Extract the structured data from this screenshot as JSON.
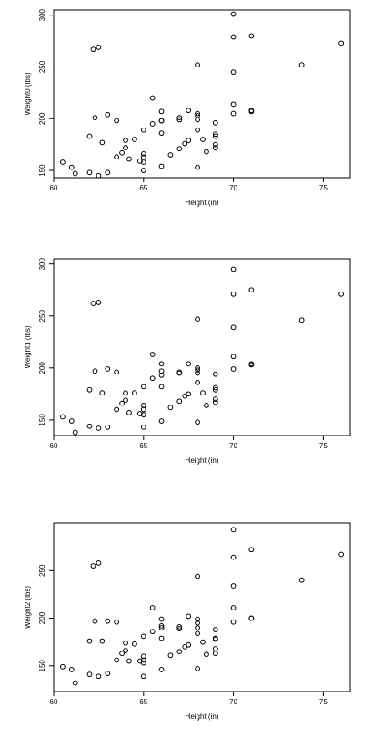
{
  "chart_data": [
    {
      "type": "scatter",
      "xlabel": "Height (in)",
      "ylabel": "Weight0 (lbs)",
      "xlim": [
        60,
        76.5
      ],
      "ylim": [
        143,
        305
      ],
      "xticks": [
        60,
        65,
        70,
        75
      ],
      "yticks": [
        150,
        200,
        250,
        300
      ],
      "points": [
        [
          60.5,
          158
        ],
        [
          61,
          153
        ],
        [
          61.2,
          147
        ],
        [
          62,
          148
        ],
        [
          62,
          183
        ],
        [
          62.3,
          201
        ],
        [
          62.2,
          267
        ],
        [
          62.5,
          269
        ],
        [
          62.5,
          145
        ],
        [
          62.7,
          177
        ],
        [
          63,
          148
        ],
        [
          63,
          204
        ],
        [
          63.5,
          198
        ],
        [
          63.5,
          163
        ],
        [
          63.8,
          167
        ],
        [
          64,
          172
        ],
        [
          64,
          179
        ],
        [
          64.2,
          161
        ],
        [
          64.5,
          180
        ],
        [
          64.8,
          159
        ],
        [
          65,
          150
        ],
        [
          65,
          158
        ],
        [
          65,
          163
        ],
        [
          65,
          166
        ],
        [
          65,
          189
        ],
        [
          65.5,
          220
        ],
        [
          65.5,
          195
        ],
        [
          66,
          154
        ],
        [
          66,
          186
        ],
        [
          66,
          198
        ],
        [
          66,
          198
        ],
        [
          66,
          207
        ],
        [
          66.5,
          165
        ],
        [
          67,
          171
        ],
        [
          67,
          199
        ],
        [
          67,
          201
        ],
        [
          67.3,
          176
        ],
        [
          67.5,
          179
        ],
        [
          67.5,
          208
        ],
        [
          68,
          153
        ],
        [
          68,
          189
        ],
        [
          68,
          199
        ],
        [
          68,
          203
        ],
        [
          68,
          205
        ],
        [
          68,
          252
        ],
        [
          68.3,
          180
        ],
        [
          68.5,
          168
        ],
        [
          69,
          172
        ],
        [
          69,
          175
        ],
        [
          69,
          183
        ],
        [
          69,
          185
        ],
        [
          69,
          196
        ],
        [
          70,
          205
        ],
        [
          70,
          214
        ],
        [
          70,
          245
        ],
        [
          70,
          279
        ],
        [
          70,
          301
        ],
        [
          71,
          207
        ],
        [
          71,
          208
        ],
        [
          71,
          280
        ],
        [
          73.8,
          252
        ],
        [
          76,
          273
        ]
      ]
    },
    {
      "type": "scatter",
      "xlabel": "Height (in)",
      "ylabel": "Weight1 (lbs)",
      "xlim": [
        60,
        76.5
      ],
      "ylim": [
        135,
        305
      ],
      "xticks": [
        60,
        65,
        70,
        75
      ],
      "yticks": [
        150,
        200,
        250,
        300
      ],
      "points": [
        [
          60.5,
          153
        ],
        [
          61,
          149
        ],
        [
          61.2,
          138
        ],
        [
          62,
          144
        ],
        [
          62,
          179
        ],
        [
          62.3,
          197
        ],
        [
          62.2,
          262
        ],
        [
          62.5,
          263
        ],
        [
          62.5,
          142
        ],
        [
          62.7,
          176
        ],
        [
          63,
          143
        ],
        [
          63,
          199
        ],
        [
          63.5,
          196
        ],
        [
          63.5,
          160
        ],
        [
          63.8,
          166
        ],
        [
          64,
          169
        ],
        [
          64,
          176
        ],
        [
          64.2,
          157
        ],
        [
          64.5,
          176
        ],
        [
          64.8,
          156
        ],
        [
          65,
          143
        ],
        [
          65,
          155
        ],
        [
          65,
          160
        ],
        [
          65,
          164
        ],
        [
          65,
          182
        ],
        [
          65.5,
          213
        ],
        [
          65.5,
          190
        ],
        [
          66,
          149
        ],
        [
          66,
          182
        ],
        [
          66,
          193
        ],
        [
          66,
          197
        ],
        [
          66,
          204
        ],
        [
          66.5,
          162
        ],
        [
          67,
          168
        ],
        [
          67,
          195
        ],
        [
          67,
          196
        ],
        [
          67.3,
          173
        ],
        [
          67.5,
          175
        ],
        [
          67.5,
          204
        ],
        [
          68,
          148
        ],
        [
          68,
          186
        ],
        [
          68,
          195
        ],
        [
          68,
          198
        ],
        [
          68,
          200
        ],
        [
          68,
          247
        ],
        [
          68.3,
          176
        ],
        [
          68.5,
          164
        ],
        [
          69,
          167
        ],
        [
          69,
          170
        ],
        [
          69,
          179
        ],
        [
          69,
          181
        ],
        [
          69,
          194
        ],
        [
          70,
          199
        ],
        [
          70,
          211
        ],
        [
          70,
          239
        ],
        [
          70,
          271
        ],
        [
          70,
          295
        ],
        [
          71,
          203
        ],
        [
          71,
          204
        ],
        [
          71,
          275
        ],
        [
          73.8,
          246
        ],
        [
          76,
          271
        ]
      ]
    },
    {
      "type": "scatter",
      "xlabel": "Height (in)",
      "ylabel": "Weight2 (lbs)",
      "xlim": [
        60,
        76.5
      ],
      "ylim": [
        123,
        300
      ],
      "xticks": [
        60,
        65,
        70,
        75
      ],
      "yticks": [
        150,
        200,
        250
      ],
      "points": [
        [
          60.5,
          149
        ],
        [
          61,
          146
        ],
        [
          61.2,
          132
        ],
        [
          62,
          141
        ],
        [
          62,
          176
        ],
        [
          62.3,
          197
        ],
        [
          62.2,
          255
        ],
        [
          62.5,
          258
        ],
        [
          62.5,
          139
        ],
        [
          62.7,
          176
        ],
        [
          63,
          142
        ],
        [
          63,
          197
        ],
        [
          63.5,
          196
        ],
        [
          63.5,
          156
        ],
        [
          63.8,
          163
        ],
        [
          64,
          166
        ],
        [
          64,
          174
        ],
        [
          64.2,
          155
        ],
        [
          64.5,
          173
        ],
        [
          64.8,
          155
        ],
        [
          65,
          139
        ],
        [
          65,
          153
        ],
        [
          65,
          156
        ],
        [
          65,
          160
        ],
        [
          65,
          181
        ],
        [
          65.5,
          211
        ],
        [
          65.5,
          186
        ],
        [
          66,
          146
        ],
        [
          66,
          179
        ],
        [
          66,
          190
        ],
        [
          66,
          192
        ],
        [
          66,
          199
        ],
        [
          66.5,
          161
        ],
        [
          67,
          165
        ],
        [
          67,
          189
        ],
        [
          67,
          191
        ],
        [
          67.3,
          170
        ],
        [
          67.5,
          172
        ],
        [
          67.5,
          202
        ],
        [
          68,
          147
        ],
        [
          68,
          184
        ],
        [
          68,
          190
        ],
        [
          68,
          195
        ],
        [
          68,
          199
        ],
        [
          68,
          244
        ],
        [
          68.3,
          175
        ],
        [
          68.5,
          162
        ],
        [
          69,
          163
        ],
        [
          69,
          168
        ],
        [
          69,
          178
        ],
        [
          69,
          179
        ],
        [
          69,
          188
        ],
        [
          70,
          196
        ],
        [
          70,
          211
        ],
        [
          70,
          234
        ],
        [
          70,
          264
        ],
        [
          70,
          293
        ],
        [
          71,
          200
        ],
        [
          71,
          200
        ],
        [
          71,
          272
        ],
        [
          73.8,
          240
        ],
        [
          76,
          267
        ]
      ]
    }
  ]
}
